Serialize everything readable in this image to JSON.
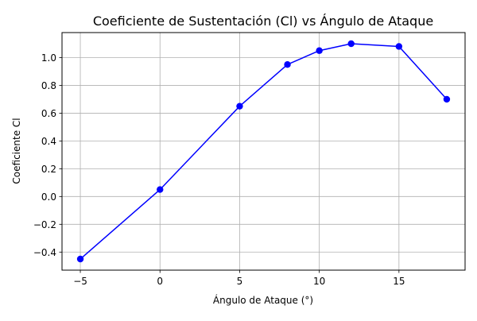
{
  "chart_data": {
    "type": "line",
    "title": "Coeficiente de Sustentación (Cl) vs Ángulo de Ataque",
    "xlabel": "Ángulo de Ataque (°)",
    "ylabel": "Coeficiente Cl",
    "xlim": [
      -6.15,
      19.15
    ],
    "ylim": [
      -0.53,
      1.18
    ],
    "xticks": [
      -5,
      0,
      5,
      10,
      15
    ],
    "xtick_labels": [
      "−5",
      "0",
      "5",
      "10",
      "15"
    ],
    "yticks": [
      -0.4,
      -0.2,
      0.0,
      0.2,
      0.4,
      0.6,
      0.8,
      1.0
    ],
    "ytick_labels": [
      "−0.4",
      "−0.2",
      "0.0",
      "0.2",
      "0.4",
      "0.6",
      "0.8",
      "1.0"
    ],
    "grid": true,
    "series": [
      {
        "color": "#0000ff",
        "marker": "circle",
        "x": [
          -5,
          0,
          5,
          8,
          10,
          12,
          15,
          18
        ],
        "y": [
          -0.45,
          0.05,
          0.65,
          0.95,
          1.05,
          1.1,
          1.08,
          0.7
        ]
      }
    ]
  }
}
